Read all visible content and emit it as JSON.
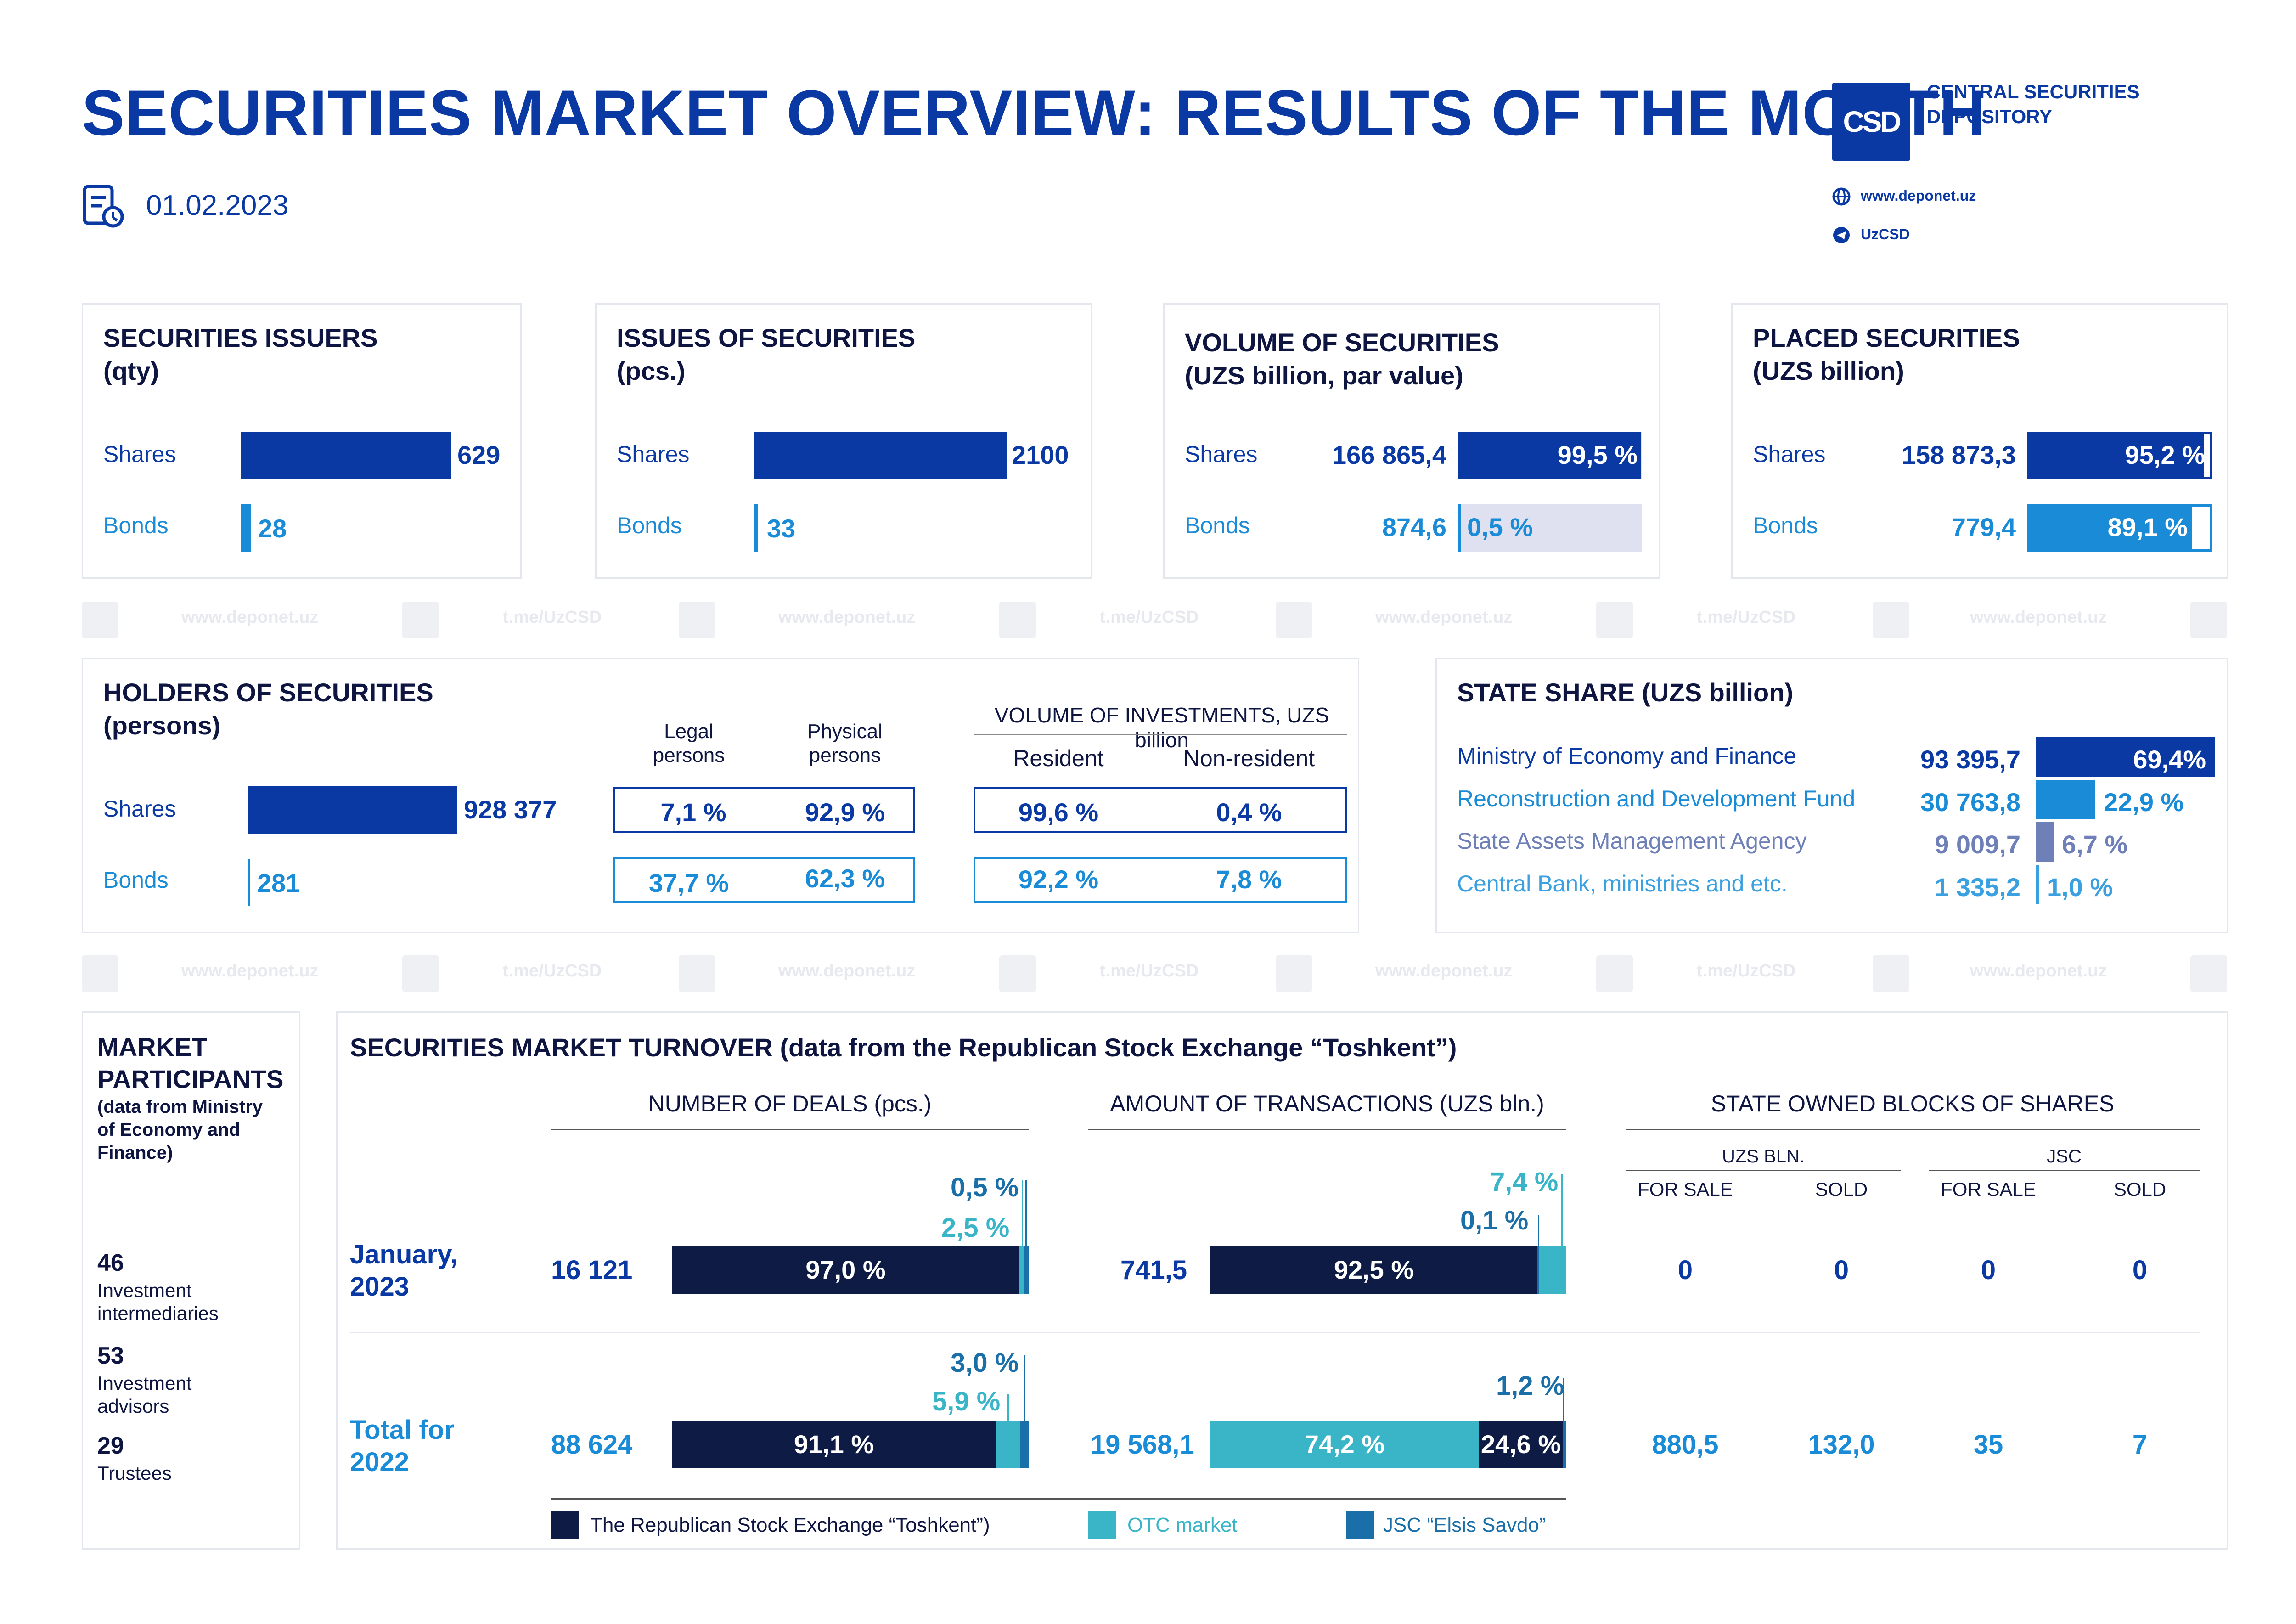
{
  "header": {
    "title": "SECURITIES MARKET OVERVIEW: RESULTS OF THE MONTH",
    "date": "01.02.2023",
    "org_line1": "CENTRAL SECURITIES",
    "org_line2": "DEPOSITORY",
    "logo_text": "CSD",
    "website": "www.deponet.uz",
    "telegram": "UzCSD"
  },
  "watermark": {
    "site": "www.deponet.uz",
    "tg": "t.me/UzCSD"
  },
  "issuers": {
    "title1": "SECURITIES ISSUERS",
    "title2": "(qty)",
    "shares_label": "Shares",
    "bonds_label": "Bonds",
    "shares": "629",
    "bonds": "28",
    "shares_value": 629,
    "bonds_value": 28
  },
  "issues": {
    "title1": "ISSUES OF SECURITIES",
    "title2": "(pcs.)",
    "shares_label": "Shares",
    "bonds_label": "Bonds",
    "shares": "2100",
    "bonds": "33",
    "shares_value": 2100,
    "bonds_value": 33
  },
  "volume": {
    "title1": "VOLUME OF SECURITIES",
    "title2": "(UZS billion, par value)",
    "shares_label": "Shares",
    "bonds_label": "Bonds",
    "shares": "166 865,4",
    "bonds": "874,6",
    "shares_pct": "99,5 %",
    "bonds_pct": "0,5 %",
    "shares_pct_value": 99.5,
    "bonds_pct_value": 0.5
  },
  "placed": {
    "title1": "PLACED SECURITIES",
    "title2": "(UZS billion)",
    "shares_label": "Shares",
    "bonds_label": "Bonds",
    "shares": "158 873,3",
    "bonds": "779,4",
    "shares_pct": "95,2 %",
    "bonds_pct": "89,1 %",
    "shares_pct_value": 95.2,
    "bonds_pct_value": 89.1
  },
  "holders": {
    "title1": "HOLDERS OF SECURITIES",
    "title2": "(persons)",
    "shares_label": "Shares",
    "bonds_label": "Bonds",
    "shares": "928 377",
    "bonds": "281",
    "shares_value": 928377,
    "bonds_value": 281,
    "legal_h1": "Legal",
    "legal_h2": "persons",
    "phys_h1": "Physical",
    "phys_h2": "persons",
    "inv_title": "VOLUME OF INVESTMENTS, UZS billion",
    "resident": "Resident",
    "nonresident": "Non-resident",
    "shares_legal": "7,1 %",
    "shares_phys": "92,9 %",
    "bonds_legal": "37,7 %",
    "bonds_phys": "62,3 %",
    "shares_res": "99,6 %",
    "shares_nonres": "0,4 %",
    "bonds_res": "92,2 %",
    "bonds_nonres": "7,8 %"
  },
  "state_share": {
    "title": "STATE SHARE (UZS billion)",
    "rows": [
      {
        "name": "Ministry of Economy and Finance",
        "value": "93 395,7",
        "pct": "69,4%",
        "pct_value": 69.4,
        "color": "#0a39a4"
      },
      {
        "name": "Reconstruction and Development Fund",
        "value": "30 763,8",
        "pct": "22,9 %",
        "pct_value": 22.9,
        "color": "#1a8bd6"
      },
      {
        "name": "State Assets Management Agency",
        "value": "9 009,7",
        "pct": "6,7 %",
        "pct_value": 6.7,
        "color": "#6f7fb8"
      },
      {
        "name": "Central Bank, ministries and etc.",
        "value": "1 335,2",
        "pct": "1,0 %",
        "pct_value": 1.0,
        "color": "#3aa0e0"
      }
    ]
  },
  "participants": {
    "title1": "MARKET",
    "title2": "PARTICIPANTS",
    "sub1": "(data from Ministry",
    "sub2": "of Economy and",
    "sub3": "Finance)",
    "items": [
      {
        "num": "46",
        "l1": "Investment",
        "l2": "intermediaries"
      },
      {
        "num": "53",
        "l1": "Investment",
        "l2": "advisors"
      },
      {
        "num": "29",
        "l1": "Trustees",
        "l2": ""
      }
    ]
  },
  "turnover": {
    "title": "SECURITIES MARKET TURNOVER (data from the Republican Stock Exchange “Toshkent”)",
    "deals_header": "NUMBER OF DEALS (pcs.)",
    "amount_header": "AMOUNT OF TRANSACTIONS (UZS bln.)",
    "state_header": "STATE OWNED BLOCKS OF SHARES",
    "uzs_bln": "UZS BLN.",
    "jsc": "JSC",
    "for_sale": "FOR SALE",
    "sold": "SOLD",
    "rows": [
      {
        "period1": "January,",
        "period2": "2023",
        "deals": "16 121",
        "deals_main": "97,0 %",
        "deals_otc": "2,5 %",
        "deals_elsis": "0,5 %",
        "amount": "741,5",
        "amount_main": "92,5 %",
        "amount_otc": "7,4 %",
        "amount_elsis": "0,1 %",
        "uzs_sale": "0",
        "uzs_sold": "0",
        "jsc_sale": "0",
        "jsc_sold": "0"
      },
      {
        "period1": "Total for",
        "period2": "2022",
        "deals": "88 624",
        "deals_main": "91,1 %",
        "deals_otc": "5,9 %",
        "deals_elsis": "3,0 %",
        "amount": "19 568,1",
        "amount_otc_in": "74,2 %",
        "amount_main_in": "24,6 %",
        "amount_elsis": "1,2 %",
        "uzs_sale": "880,5",
        "uzs_sold": "132,0",
        "jsc_sale": "35",
        "jsc_sold": "7"
      }
    ],
    "legend": {
      "main": "The Republican Stock Exchange “Toshkent”)",
      "otc": "OTC market",
      "elsis": "JSC “Elsis Savdo”"
    },
    "colors": {
      "main": "#0e1b45",
      "otc": "#3ab5c7",
      "elsis": "#1b6fa8"
    }
  }
}
